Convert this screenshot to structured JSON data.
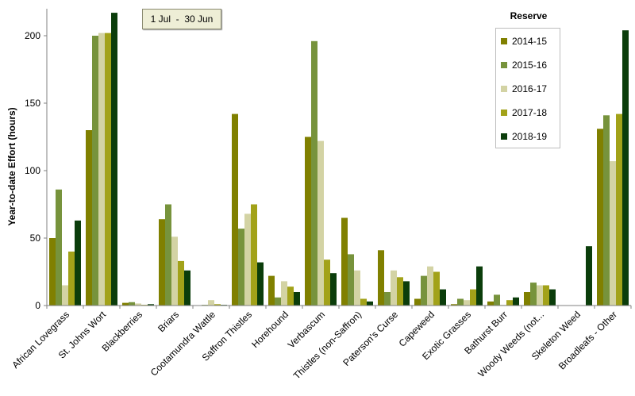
{
  "date_range": "1 Jul  -  30 Jun",
  "legend": {
    "title": "Reserve",
    "placement": "top-right"
  },
  "colors": [
    "#808000",
    "#77933c",
    "#d3d3a4",
    "#a2a219",
    "#0b3d0b"
  ],
  "chart_data": {
    "type": "bar",
    "title": "",
    "xlabel": "",
    "ylabel": "Year-to-date Effort  (hours)",
    "ylim": [
      0,
      220
    ],
    "yticks": [
      0,
      50,
      100,
      150,
      200
    ],
    "grid": false,
    "categories": [
      "African Lovegrass",
      "St. Johns Wort",
      "Blackberries",
      "Briars",
      "Cootamundra Wattle",
      "Saffron Thistles",
      "Horehound",
      "Verbascum",
      "Thistles (non-Saffron)",
      "Paterson's Curse",
      "Capeweed",
      "Exotic Grasses",
      "Bathurst Burr",
      "Woody Weeds (not...",
      "Skeleton Weed",
      "Broadleafs - Other"
    ],
    "series": [
      {
        "name": "2014-15",
        "values": [
          50,
          130,
          2,
          64,
          0,
          142,
          22,
          125,
          65,
          41,
          5,
          1,
          3,
          10,
          0,
          131
        ]
      },
      {
        "name": "2015-16",
        "values": [
          86,
          200,
          2.5,
          75,
          0.5,
          57,
          6,
          196,
          38,
          10,
          22,
          5,
          8,
          17,
          0,
          141
        ]
      },
      {
        "name": "2016-17",
        "values": [
          15,
          202,
          1.5,
          51,
          4,
          68,
          18,
          122,
          26,
          26,
          29,
          4,
          0.5,
          15,
          0,
          107
        ]
      },
      {
        "name": "2017-18",
        "values": [
          40,
          202,
          0.5,
          33,
          1,
          75,
          14,
          34,
          5,
          21,
          25,
          12,
          4,
          15,
          0,
          142
        ]
      },
      {
        "name": "2018-19",
        "values": [
          63,
          217,
          1,
          26,
          0.5,
          32,
          10,
          24,
          3,
          18,
          12,
          29,
          6,
          12,
          44,
          204
        ]
      }
    ]
  }
}
